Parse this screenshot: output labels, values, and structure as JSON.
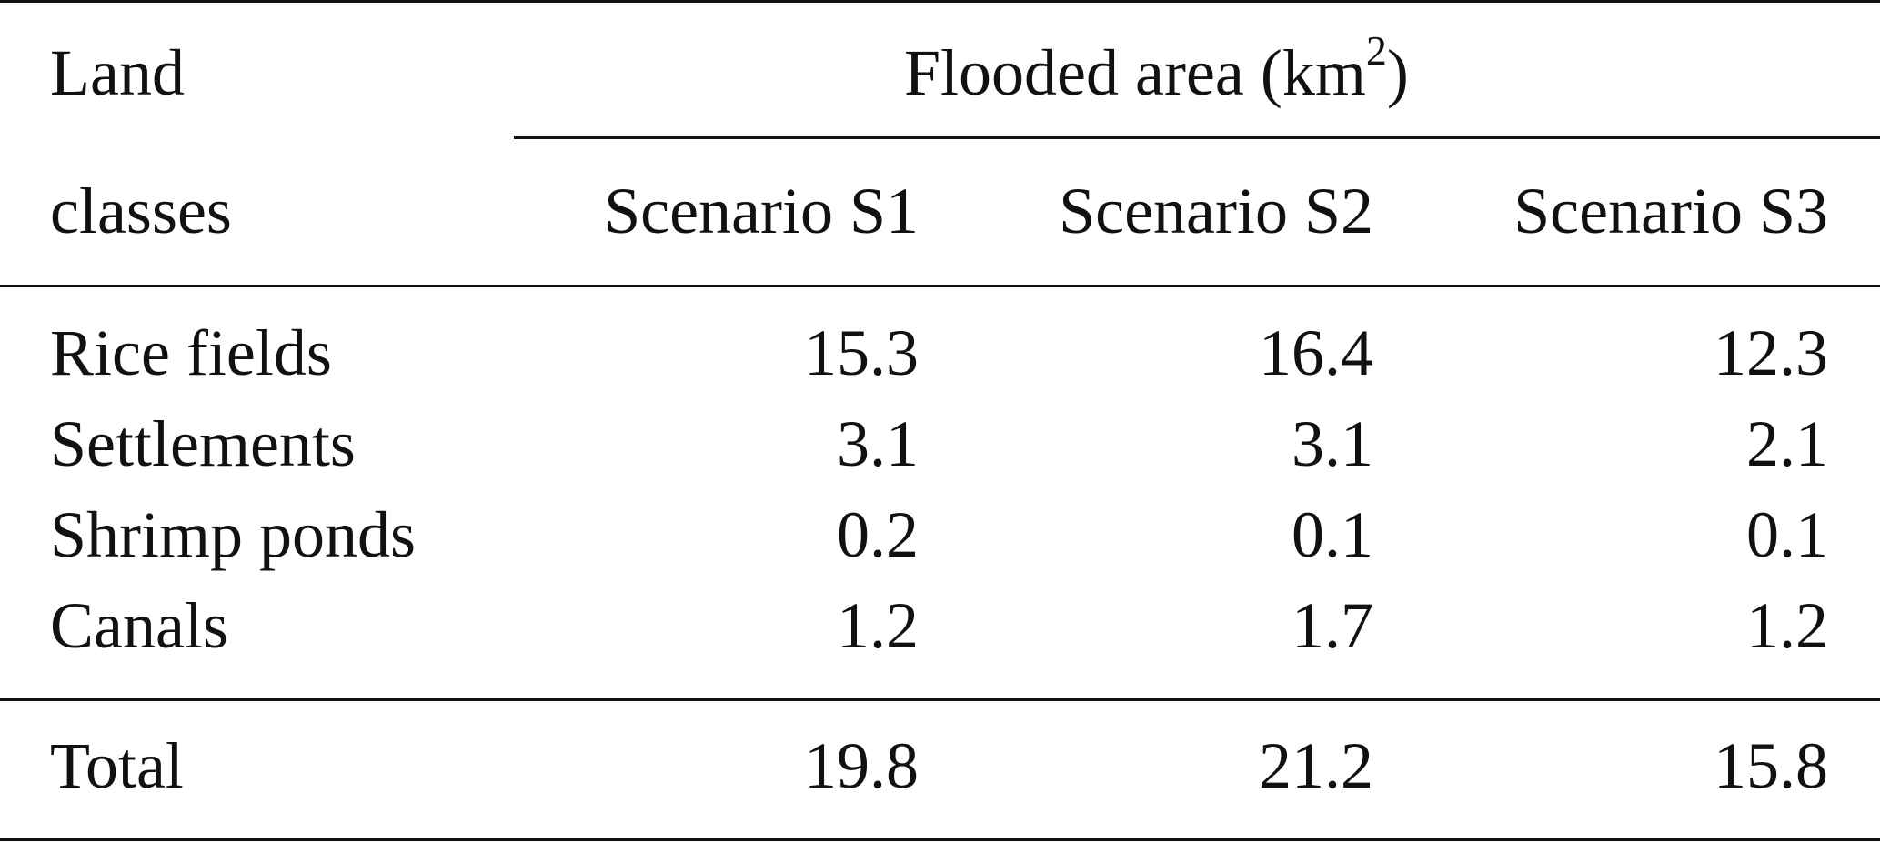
{
  "table": {
    "header": {
      "stub_line1": "Land",
      "stub_line2": "classes",
      "group_label_prefix": "Flooded area (km",
      "group_label_sup": "2",
      "group_label_suffix": ")",
      "columns": [
        "Scenario S1",
        "Scenario S2",
        "Scenario S3"
      ]
    },
    "rows": [
      {
        "label": "Rice fields",
        "values": [
          "15.3",
          "16.4",
          "12.3"
        ]
      },
      {
        "label": "Settlements",
        "values": [
          "3.1",
          "3.1",
          "2.1"
        ]
      },
      {
        "label": "Shrimp ponds",
        "values": [
          "0.2",
          "0.1",
          "0.1"
        ]
      },
      {
        "label": "Canals",
        "values": [
          "1.2",
          "1.7",
          "1.2"
        ]
      }
    ],
    "total": {
      "label": "Total",
      "values": [
        "19.8",
        "21.2",
        "15.8"
      ]
    }
  }
}
